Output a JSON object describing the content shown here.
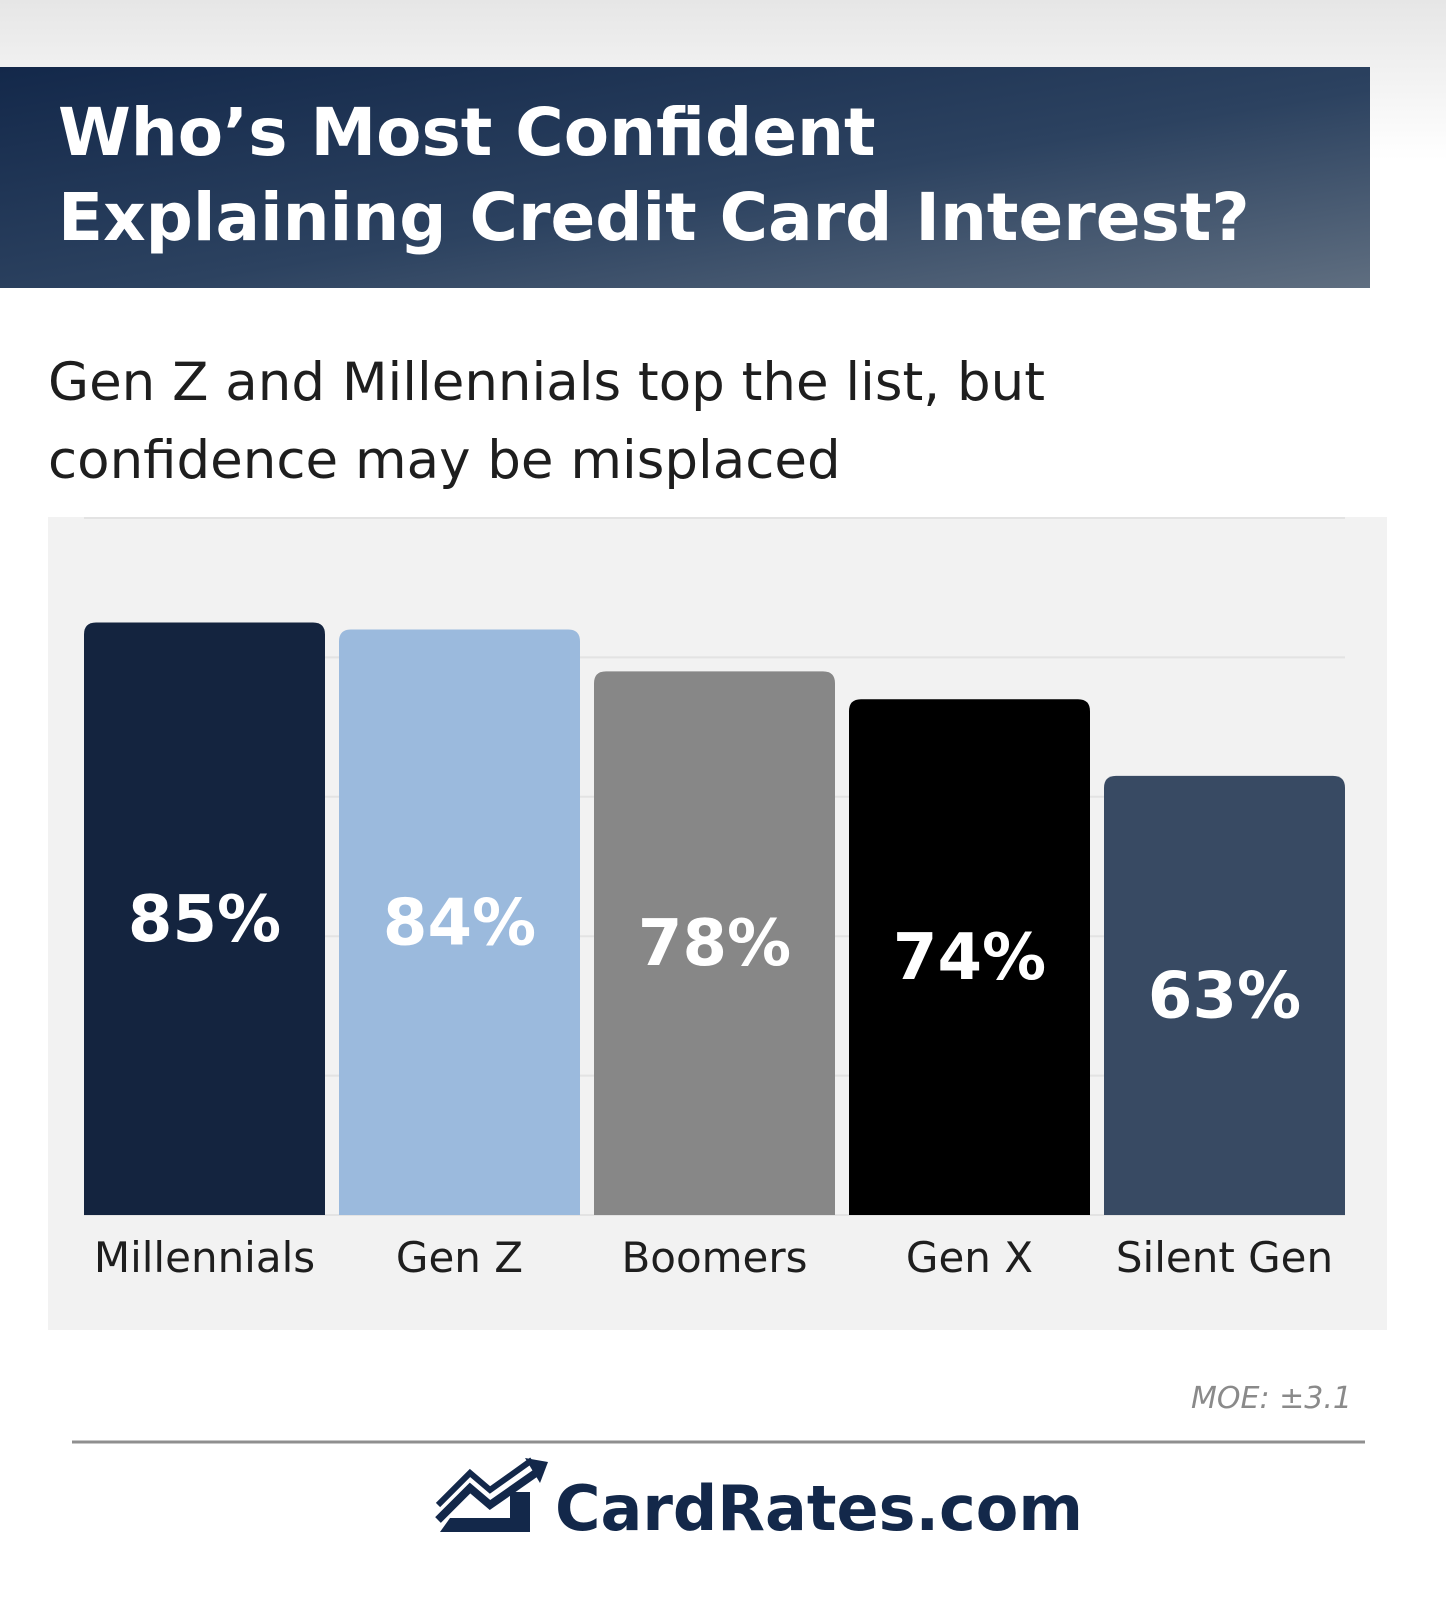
{
  "chart_data": {
    "type": "bar",
    "title": [
      "Who’s Most Confident",
      "Explaining Credit Card Interest?"
    ],
    "subtitle": [
      "Gen Z and Millennials top the list, but",
      "confidence may be misplaced"
    ],
    "categories": [
      "Millennials",
      "Gen Z",
      "Boomers",
      "Gen X",
      "Silent Gen"
    ],
    "values": [
      85,
      84,
      78,
      74,
      63
    ],
    "value_labels": [
      "85%",
      "84%",
      "78%",
      "74%",
      "63%"
    ],
    "colors": [
      "#14243f",
      "#9bbadd",
      "#878787",
      "#000000",
      "#384a63"
    ],
    "ylim": [
      0,
      100
    ],
    "yticks": [
      0,
      20,
      40,
      60,
      80,
      100
    ],
    "grid": true,
    "note": "MOE: ±3.1",
    "brand": "CardRates.com"
  }
}
